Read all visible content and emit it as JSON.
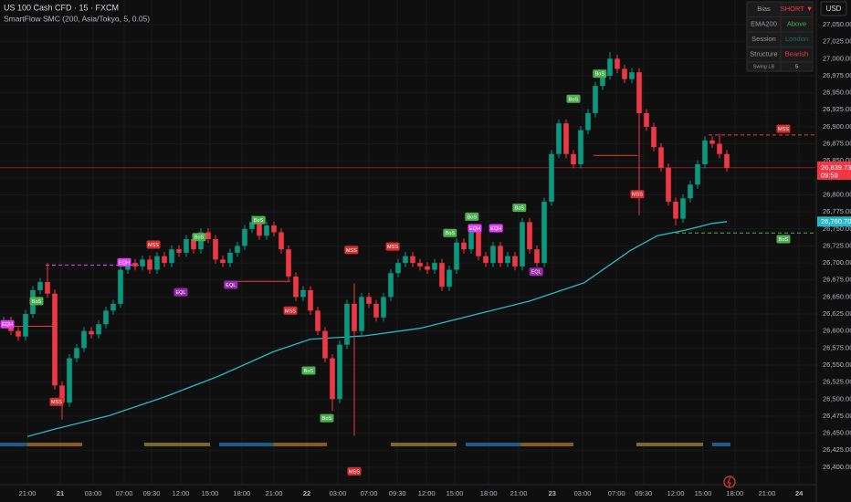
{
  "chart_data": {
    "type": "candlestick",
    "title": "US 100 Cash CFD · 15 · FXCM",
    "subtitle": "SmartFlow SMC (200, Asia/Tokyo, 5, 0.05)",
    "currency": "USD",
    "up_color": "#089981",
    "down_color": "#f23645",
    "grid": true,
    "xlim": [
      -0.5,
      111.125
    ],
    "ylim": [
      26375.7,
      27086.2
    ],
    "xticks": [
      {
        "value": 3.25,
        "label": "21:00"
      },
      {
        "value": 7.75,
        "label": "21"
      },
      {
        "value": 12.25,
        "label": "03:00"
      },
      {
        "value": 16.5,
        "label": "07:00"
      },
      {
        "value": 20.25,
        "label": "09:30"
      },
      {
        "value": 24.25,
        "label": "12:00"
      },
      {
        "value": 28.25,
        "label": "15:00"
      },
      {
        "value": 32.6,
        "label": "18:00"
      },
      {
        "value": 37,
        "label": "21:00"
      },
      {
        "value": 41.5,
        "label": "22"
      },
      {
        "value": 45.75,
        "label": "03:00"
      },
      {
        "value": 50,
        "label": "07:00"
      },
      {
        "value": 53.9,
        "label": "09:30"
      },
      {
        "value": 57.9,
        "label": "12:00"
      },
      {
        "value": 61.75,
        "label": "15:00"
      },
      {
        "value": 66.4,
        "label": "18:00"
      },
      {
        "value": 70.5,
        "label": "21:00"
      },
      {
        "value": 75.1,
        "label": "23"
      },
      {
        "value": 79.25,
        "label": "03:00"
      },
      {
        "value": 83.9,
        "label": "07:00"
      },
      {
        "value": 87.6,
        "label": "09:30"
      },
      {
        "value": 92,
        "label": "12:00"
      },
      {
        "value": 95.75,
        "label": "15:00"
      },
      {
        "value": 100.1,
        "label": "18:00"
      },
      {
        "value": 104.5,
        "label": "21:00"
      },
      {
        "value": 108.9,
        "label": "24"
      }
    ],
    "yticks": [
      {
        "value": 26400,
        "label": "26,400.00"
      },
      {
        "value": 26425,
        "label": "26,425.00"
      },
      {
        "value": 26450,
        "label": "26,450.00"
      },
      {
        "value": 26475,
        "label": "26,475.00"
      },
      {
        "value": 26500,
        "label": "26,500.00"
      },
      {
        "value": 26525,
        "label": "26,525.00"
      },
      {
        "value": 26550,
        "label": "26,550.00"
      },
      {
        "value": 26575,
        "label": "26,575.00"
      },
      {
        "value": 26600,
        "label": "26,600.00"
      },
      {
        "value": 26625,
        "label": "26,625.00"
      },
      {
        "value": 26650,
        "label": "26,650.00"
      },
      {
        "value": 26675,
        "label": "26,675.00"
      },
      {
        "value": 26700,
        "label": "26,700.00"
      },
      {
        "value": 26725,
        "label": "26,725.00"
      },
      {
        "value": 26750,
        "label": "26,750.00"
      },
      {
        "value": 26775,
        "label": "26,775.00"
      },
      {
        "value": 26800,
        "label": "26,800.00"
      },
      {
        "value": 26825,
        "label": "26,825.00"
      },
      {
        "value": 26850,
        "label": "26,850.00"
      },
      {
        "value": 26875,
        "label": "26,875.00"
      },
      {
        "value": 26900,
        "label": "26,900.00"
      },
      {
        "value": 26925,
        "label": "26,925.00"
      },
      {
        "value": 26950,
        "label": "26,950.00"
      },
      {
        "value": 26975,
        "label": "26,975.00"
      },
      {
        "value": 27000,
        "label": "27,000.00"
      },
      {
        "value": 27025,
        "label": "27,025.00"
      },
      {
        "value": 27050,
        "label": "27,050.00"
      }
    ],
    "open": [
      26610,
      26615,
      26600,
      26592,
      26625,
      26660,
      26672,
      26655,
      26520,
      26495,
      26560,
      26575,
      26600,
      26595,
      26610,
      26630,
      26640,
      26690,
      26700,
      26695,
      26705,
      26690,
      26710,
      26700,
      26720,
      26715,
      26735,
      26720,
      26745,
      26735,
      26705,
      26700,
      26715,
      26725,
      26750,
      26760,
      26740,
      26755,
      26745,
      26720,
      26680,
      26650,
      26660,
      26630,
      26600,
      26560,
      26500,
      26580,
      26640,
      26600,
      26650,
      26640,
      26620,
      26650,
      26685,
      26700,
      26710,
      26700,
      26695,
      26690,
      26700,
      26665,
      26690,
      26730,
      26720,
      26745,
      26710,
      26700,
      26725,
      26700,
      26710,
      26695,
      26760,
      26720,
      26700,
      26790,
      26860,
      26905,
      26860,
      26845,
      26895,
      26920,
      26960,
      26975,
      27000,
      26985,
      26970,
      26980,
      26920,
      26900,
      26870,
      26840,
      26790,
      26765,
      26795,
      26815,
      26845,
      26880,
      26875,
      26860
    ],
    "high": [
      26621,
      26621,
      26606,
      26631,
      26666,
      26678,
      26700,
      26661,
      26526,
      26566,
      26581,
      26606,
      26606,
      26616,
      26636,
      26646,
      26696,
      26706,
      26706,
      26711,
      26711,
      26716,
      26716,
      26726,
      26726,
      26741,
      26741,
      26751,
      26751,
      26741,
      26711,
      26721,
      26731,
      26756,
      26770,
      26766,
      26761,
      26761,
      26751,
      26726,
      26686,
      26666,
      26666,
      26636,
      26606,
      26566,
      26586,
      26646,
      26670,
      26656,
      26656,
      26646,
      26656,
      26691,
      26706,
      26716,
      26716,
      26706,
      26701,
      26706,
      26706,
      26696,
      26736,
      26736,
      26751,
      26751,
      26716,
      26731,
      26731,
      26716,
      26716,
      26766,
      26766,
      26726,
      26796,
      26866,
      26911,
      26911,
      26866,
      26901,
      26926,
      26966,
      26981,
      27010,
      27006,
      26991,
      26986,
      26986,
      26926,
      26906,
      26876,
      26846,
      26796,
      26801,
      26821,
      26851,
      26886,
      26886,
      26890,
      26866
    ],
    "low": [
      26604,
      26594,
      26586,
      26586,
      26619,
      26654,
      26649,
      26514,
      26470,
      26489,
      26554,
      26569,
      26589,
      26589,
      26604,
      26624,
      26634,
      26684,
      26689,
      26689,
      26684,
      26684,
      26694,
      26694,
      26709,
      26709,
      26714,
      26714,
      26729,
      26699,
      26694,
      26694,
      26709,
      26719,
      26744,
      26734,
      26734,
      26739,
      26714,
      26674,
      26644,
      26644,
      26624,
      26594,
      26554,
      26483,
      26494,
      26574,
      26446,
      26594,
      26634,
      26614,
      26614,
      26644,
      26679,
      26694,
      26694,
      26689,
      26684,
      26684,
      26659,
      26659,
      26684,
      26714,
      26714,
      26704,
      26694,
      26694,
      26694,
      26694,
      26689,
      26689,
      26714,
      26694,
      26694,
      26784,
      26854,
      26854,
      26839,
      26839,
      26889,
      26914,
      26954,
      26969,
      26979,
      26964,
      26964,
      26770,
      26894,
      26864,
      26834,
      26784,
      26755,
      26759,
      26789,
      26809,
      26839,
      26869,
      26854,
      26834
    ],
    "close": [
      26615,
      26600,
      26592,
      26625,
      26660,
      26672,
      26655,
      26520,
      26495,
      26560,
      26575,
      26600,
      26595,
      26610,
      26630,
      26640,
      26690,
      26700,
      26695,
      26705,
      26690,
      26710,
      26700,
      26720,
      26715,
      26735,
      26720,
      26745,
      26735,
      26705,
      26700,
      26715,
      26725,
      26750,
      26760,
      26740,
      26755,
      26745,
      26720,
      26680,
      26650,
      26660,
      26630,
      26600,
      26560,
      26500,
      26580,
      26640,
      26600,
      26650,
      26640,
      26620,
      26650,
      26685,
      26700,
      26710,
      26700,
      26695,
      26690,
      26700,
      26665,
      26690,
      26730,
      26720,
      26745,
      26710,
      26700,
      26725,
      26700,
      26710,
      26695,
      26760,
      26720,
      26700,
      26790,
      26860,
      26905,
      26860,
      26845,
      26895,
      26920,
      26960,
      26975,
      27000,
      26985,
      26970,
      26980,
      26920,
      26900,
      26870,
      26840,
      26790,
      26765,
      26795,
      26815,
      26845,
      26880,
      26875,
      26860,
      26839.73
    ],
    "ema": {
      "color": "#26b8c9",
      "x": [
        3.25,
        7,
        14.5,
        22,
        29.5,
        37,
        42,
        49.5,
        57,
        64.5,
        72,
        79.5,
        85.75,
        89.5,
        93.25,
        97,
        99
      ],
      "values": [
        26445,
        26456,
        26476,
        26503,
        26534,
        26570,
        26588,
        26593,
        26604,
        26624,
        26644,
        26671,
        26718,
        26740,
        26748,
        26758,
        26760.7
      ]
    },
    "price_tag": {
      "value": 26839.73,
      "label": "26,839.73",
      "countdown": "09:59",
      "color": "#f23645"
    },
    "ema_tag": {
      "value": 26760.7,
      "label": "26,760.70",
      "color": "#26b8c9"
    },
    "levels": [
      {
        "price": 26888,
        "from": 96.5,
        "to": 111,
        "color": "#f23645",
        "dashed": true
      },
      {
        "price": 26744,
        "from": 92,
        "to": 111,
        "color": "#4caf50",
        "dashed": true
      },
      {
        "price": 26607,
        "from": 1,
        "to": 7,
        "color": "#f23645",
        "dashed": false
      },
      {
        "price": 26697,
        "from": 5.75,
        "to": 20,
        "color": "#e040fb",
        "dashed": true
      },
      {
        "price": 26673,
        "from": 31.4,
        "to": 39.25,
        "color": "#f23645",
        "dashed": false
      },
      {
        "price": 26858,
        "from": 80.75,
        "to": 86.75,
        "color": "#f23645",
        "dashed": false
      }
    ],
    "signal_colors": {
      "BoS": "#4caf50",
      "MSS": "#d32f2f",
      "EQH": "#e040fb",
      "EQL": "#9c27b0"
    },
    "signals": [
      {
        "label": "EQH",
        "x": 0.5,
        "price": 26610
      },
      {
        "label": "BoS",
        "x": 4.5,
        "price": 26644
      },
      {
        "label": "MSS",
        "x": 7.25,
        "price": 26496
      },
      {
        "label": "EQH",
        "x": 16.5,
        "price": 26701
      },
      {
        "label": "MSS",
        "x": 20.5,
        "price": 26727
      },
      {
        "label": "EQL",
        "x": 24.25,
        "price": 26657
      },
      {
        "label": "BoS",
        "x": 26.75,
        "price": 26738
      },
      {
        "label": "EQL",
        "x": 31.1,
        "price": 26668
      },
      {
        "label": "BoS",
        "x": 34.9,
        "price": 26763
      },
      {
        "label": "MSS",
        "x": 39.25,
        "price": 26630
      },
      {
        "label": "BoS",
        "x": 41.75,
        "price": 26542
      },
      {
        "label": "BoS",
        "x": 44.25,
        "price": 26472
      },
      {
        "label": "MSS",
        "x": 47.6,
        "price": 26719
      },
      {
        "label": "MSS",
        "x": 48,
        "price": 26394
      },
      {
        "label": "MSS",
        "x": 53.25,
        "price": 26724
      },
      {
        "label": "BoS",
        "x": 61.1,
        "price": 26744
      },
      {
        "label": "BoS",
        "x": 64.1,
        "price": 26768
      },
      {
        "label": "EQH",
        "x": 64.5,
        "price": 26751
      },
      {
        "label": "EQH",
        "x": 67.4,
        "price": 26751
      },
      {
        "label": "BoS",
        "x": 70.6,
        "price": 26781
      },
      {
        "label": "EQL",
        "x": 72.9,
        "price": 26687
      },
      {
        "label": "BoS",
        "x": 78,
        "price": 26941
      },
      {
        "label": "BoS",
        "x": 81.6,
        "price": 26978
      },
      {
        "label": "MSS",
        "x": 86.75,
        "price": 26801
      },
      {
        "label": "MSS",
        "x": 106.75,
        "price": 26897
      },
      {
        "label": "BoS",
        "x": 106.75,
        "price": 26735
      }
    ],
    "dashboard": {
      "rows": [
        [
          "Bias",
          "SHORT ▼"
        ],
        [
          "EMA200",
          "Above"
        ],
        [
          "Session",
          "London"
        ],
        [
          "Structure",
          "Bearish"
        ],
        [
          "Swing LB",
          "5"
        ]
      ],
      "colors": [
        "#f23645",
        "#4caf50",
        "#1f6f66",
        "#f23645",
        "#d1d4dc"
      ]
    }
  }
}
